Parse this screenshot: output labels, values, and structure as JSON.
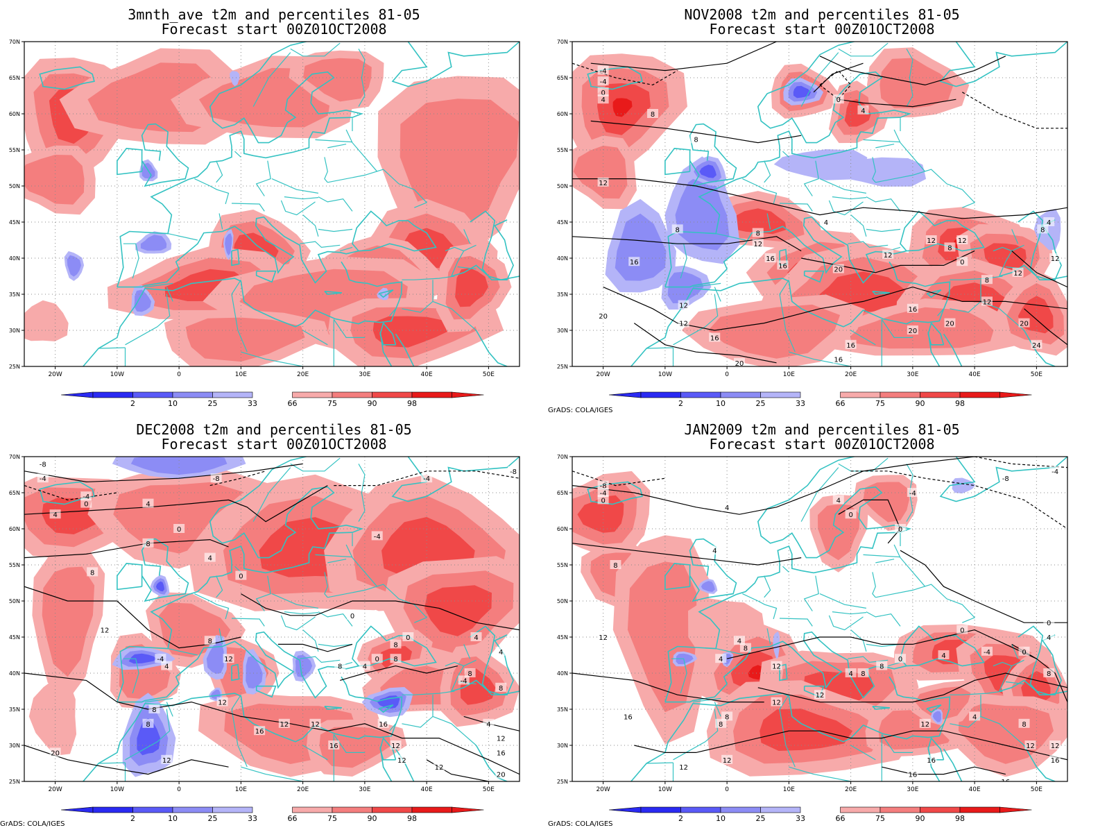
{
  "colors": {
    "blue_2": "#2a2af2",
    "blue_10": "#5a5af7",
    "blue_25": "#8c8cf5",
    "blue_33": "#b4b4f8",
    "red_66": "#f7aaaa",
    "red_75": "#f47e7e",
    "red_90": "#f04848",
    "red_98": "#e81a1a",
    "coast": "#33c2c2",
    "contour": "#000000",
    "grid": "#8a8a8a"
  },
  "legend": {
    "labels": [
      "2",
      "10",
      "25",
      "33",
      "66",
      "75",
      "90",
      "98"
    ]
  },
  "axes": {
    "lat_labels": [
      "70N",
      "65N",
      "60N",
      "55N",
      "50N",
      "45N",
      "40N",
      "35N",
      "30N",
      "25N"
    ],
    "lon_labels": [
      "20W",
      "10W",
      "0",
      "10E",
      "20E",
      "30E",
      "40E",
      "50E"
    ]
  },
  "credit": "GrADS: COLA/IGES",
  "panels": [
    {
      "title": "3mnth_ave t2m and percentiles 81-05",
      "subtitle": "Forecast start 00Z01OCT2008",
      "contour_labels": []
    },
    {
      "title": "NOV2008 t2m and percentiles 81-05",
      "subtitle": "Forecast start 00Z01OCT2008",
      "contour_labels": [
        "-4",
        "0",
        "4",
        "8",
        "12",
        "16",
        "20",
        "24"
      ]
    },
    {
      "title": "DEC2008 t2m and percentiles 81-05",
      "subtitle": "Forecast start 00Z01OCT2008",
      "contour_labels": [
        "-8",
        "-4",
        "0",
        "4",
        "8",
        "12",
        "16",
        "20"
      ]
    },
    {
      "title": "JAN2009 t2m and percentiles 81-05",
      "subtitle": "Forecast start 00Z01OCT2008",
      "contour_labels": [
        "-8",
        "-4",
        "0",
        "4",
        "8",
        "12",
        "16"
      ]
    }
  ]
}
